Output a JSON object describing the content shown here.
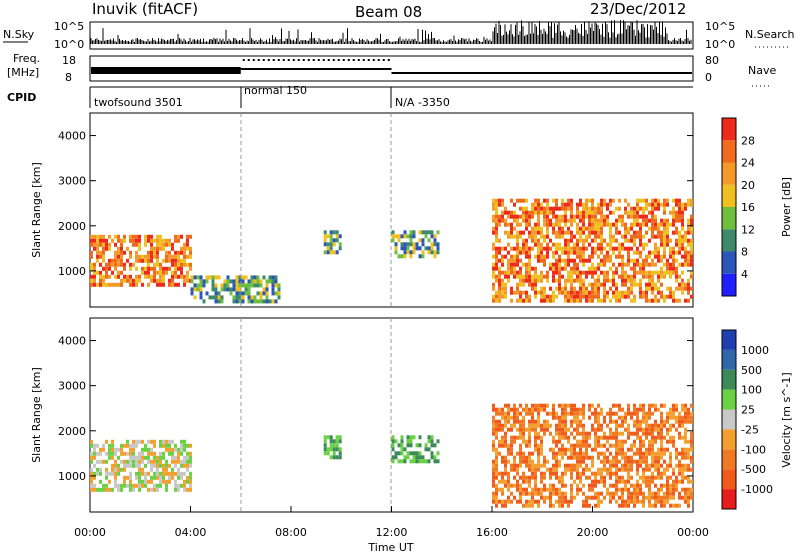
{
  "header": {
    "station": "Inuvik (fitACF)",
    "beam": "Beam 08",
    "date": "23/Dec/2012"
  },
  "top_panels": {
    "nsky": {
      "label": "N.Sky",
      "right_label": "N.Search",
      "ticks_left": [
        "10^5",
        "10^0"
      ],
      "ticks_right": [
        "10^5",
        "10^0"
      ]
    },
    "freq": {
      "label_line1": "Freq.",
      "label_line2": "[MHz]",
      "ticks_left": [
        "18",
        "8"
      ],
      "right_label": "Nave",
      "ticks_right": [
        "80",
        "0"
      ]
    },
    "cpid": {
      "label": "CPID",
      "segments": [
        {
          "start_h": 0,
          "end_h": 6,
          "text": "twofsound 3501"
        },
        {
          "start_h": 6,
          "end_h": 12,
          "text": "normal 150"
        },
        {
          "start_h": 12,
          "end_h": 24,
          "text": "N/A -3350"
        }
      ]
    }
  },
  "colors": {
    "power": [
      "#1f1fff",
      "#2b55b8",
      "#3d8a6a",
      "#6fbf3c",
      "#f0c020",
      "#f39a2a",
      "#ee6a1c",
      "#ee2a1c"
    ],
    "velocity": [
      "#e81c1c",
      "#f05a1c",
      "#f07a24",
      "#f3a030",
      "#c8c8c8",
      "#6ad044",
      "#3b8a57",
      "#2f67a8",
      "#1f3fb0"
    ],
    "frame": "#000000"
  },
  "chart_data": [
    {
      "type": "heatmap",
      "name_panel": "power",
      "ylabel": "Slant Range [km]",
      "ylim": [
        200,
        4500
      ],
      "xlim": [
        0,
        24
      ],
      "yticks": [
        1000,
        2000,
        3000,
        4000
      ],
      "colorbar": {
        "label": "Power [dB]",
        "ticks": [
          4,
          8,
          12,
          16,
          20,
          24,
          28
        ]
      },
      "echo_regions": [
        {
          "t0": 0.0,
          "t1": 4.0,
          "r0": 700,
          "r1": 1800,
          "level": "high"
        },
        {
          "t0": 4.0,
          "t1": 7.5,
          "r0": 300,
          "r1": 900,
          "level": "medium"
        },
        {
          "t0": 9.3,
          "t1": 9.9,
          "r0": 1400,
          "r1": 1900,
          "level": "medium"
        },
        {
          "t0": 12.0,
          "t1": 13.9,
          "r0": 1300,
          "r1": 1900,
          "level": "medium"
        },
        {
          "t0": 16.0,
          "t1": 24.0,
          "r0": 300,
          "r1": 2600,
          "level": "high"
        }
      ]
    },
    {
      "type": "heatmap",
      "name_panel": "velocity",
      "ylabel": "Slant Range [km]",
      "xlabel": "Time UT",
      "ylim": [
        200,
        4500
      ],
      "xlim": [
        0,
        24
      ],
      "yticks": [
        1000,
        2000,
        3000,
        4000
      ],
      "xticks": [
        "00:00",
        "04:00",
        "08:00",
        "12:00",
        "16:00",
        "20:00",
        "00:00"
      ],
      "colorbar": {
        "label": "Velocity [m s^-1]",
        "ticks": [
          1000,
          500,
          100,
          25,
          -25,
          -100,
          -500,
          -1000
        ]
      },
      "echo_regions": [
        {
          "t0": 0.0,
          "t1": 4.0,
          "r0": 700,
          "r1": 1800,
          "level": "low"
        },
        {
          "t0": 9.3,
          "t1": 9.9,
          "r0": 1400,
          "r1": 1900,
          "level": "positive"
        },
        {
          "t0": 12.0,
          "t1": 13.9,
          "r0": 1300,
          "r1": 1900,
          "level": "positive"
        },
        {
          "t0": 16.0,
          "t1": 24.0,
          "r0": 300,
          "r1": 2600,
          "level": "negative"
        }
      ]
    }
  ]
}
